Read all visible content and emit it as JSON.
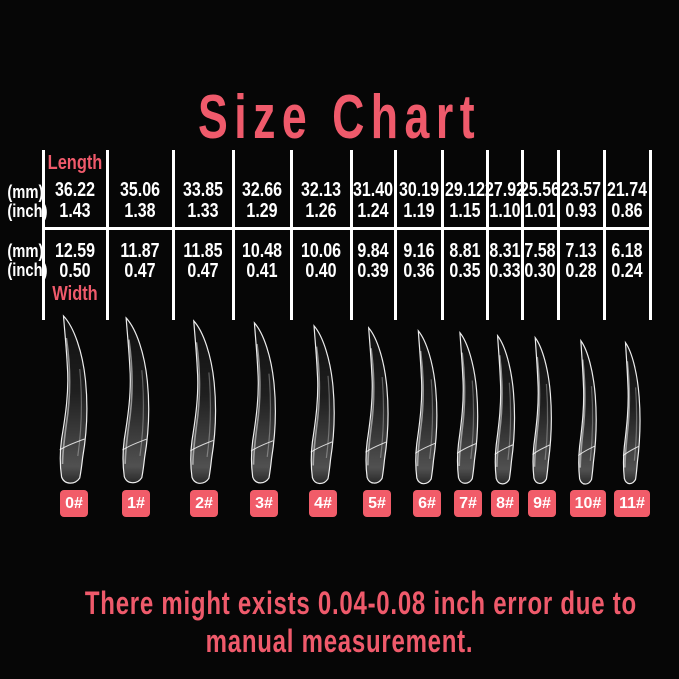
{
  "title": "Size Chart",
  "colors": {
    "accent": "#ef5a6b",
    "badge_bg": "#f15c69",
    "value_text": "#ffffff"
  },
  "table": {
    "length_label": "Length",
    "width_label": "Width",
    "unit_mm": "(mm)",
    "unit_inch": "(inch)",
    "columns": [
      {
        "size": "0#",
        "length_mm": "36.22",
        "length_inch": "1.43",
        "width_mm": "12.59",
        "width_inch": "0.50"
      },
      {
        "size": "1#",
        "length_mm": "35.06",
        "length_inch": "1.38",
        "width_mm": "11.87",
        "width_inch": "0.47"
      },
      {
        "size": "2#",
        "length_mm": "33.85",
        "length_inch": "1.33",
        "width_mm": "11.85",
        "width_inch": "0.47"
      },
      {
        "size": "3#",
        "length_mm": "32.66",
        "length_inch": "1.29",
        "width_mm": "10.48",
        "width_inch": "0.41"
      },
      {
        "size": "4#",
        "length_mm": "32.13",
        "length_inch": "1.26",
        "width_mm": "10.06",
        "width_inch": "0.40"
      },
      {
        "size": "5#",
        "length_mm": "31.40",
        "length_inch": "1.24",
        "width_mm": "9.84",
        "width_inch": "0.39"
      },
      {
        "size": "6#",
        "length_mm": "30.19",
        "length_inch": "1.19",
        "width_mm": "9.16",
        "width_inch": "0.36"
      },
      {
        "size": "7#",
        "length_mm": "29.12",
        "length_inch": "1.15",
        "width_mm": "8.81",
        "width_inch": "0.35"
      },
      {
        "size": "8#",
        "length_mm": "27.92",
        "length_inch": "1.10",
        "width_mm": "8.31",
        "width_inch": "0.33"
      },
      {
        "size": "9#",
        "length_mm": "25.56",
        "length_inch": "1.01",
        "width_mm": "7.58",
        "width_inch": "0.30"
      },
      {
        "size": "10#",
        "length_mm": "23.57",
        "length_inch": "0.93",
        "width_mm": "7.13",
        "width_inch": "0.28"
      },
      {
        "size": "11#",
        "length_mm": "21.74",
        "length_inch": "0.86",
        "width_mm": "6.18",
        "width_inch": "0.24"
      }
    ]
  },
  "footnote": {
    "line1": "There might exists 0.04-0.08 inch error due to",
    "line2": "manual measurement."
  },
  "chart_data": {
    "type": "table",
    "title": "Size Chart",
    "sizes": [
      "0#",
      "1#",
      "2#",
      "3#",
      "4#",
      "5#",
      "6#",
      "7#",
      "8#",
      "9#",
      "10#",
      "11#"
    ],
    "length_mm": [
      36.22,
      35.06,
      33.85,
      32.66,
      32.13,
      31.4,
      30.19,
      29.12,
      27.92,
      25.56,
      23.57,
      21.74
    ],
    "length_inch": [
      1.43,
      1.38,
      1.33,
      1.29,
      1.26,
      1.24,
      1.19,
      1.15,
      1.1,
      1.01,
      0.93,
      0.86
    ],
    "width_mm": [
      12.59,
      11.87,
      11.85,
      10.48,
      10.06,
      9.84,
      9.16,
      8.81,
      8.31,
      7.58,
      7.13,
      6.18
    ],
    "width_inch": [
      0.5,
      0.47,
      0.47,
      0.41,
      0.4,
      0.39,
      0.36,
      0.35,
      0.33,
      0.3,
      0.28,
      0.24
    ],
    "note": "There might exists 0.04-0.08 inch error due to manual measurement."
  }
}
